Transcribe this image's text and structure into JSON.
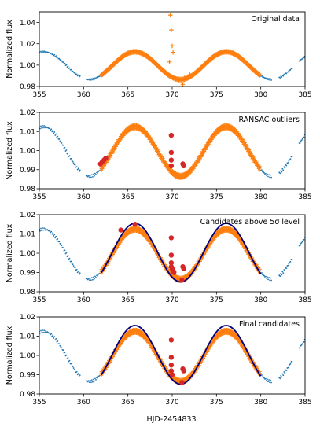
{
  "figure": {
    "xlabel": "HJD-2454833",
    "ylabel": "Normalized flux"
  },
  "colors": {
    "data_series": "#1f77b4",
    "selected_series": "#ff7f0e",
    "outlier_markers": "#d62728",
    "model_curve": "#000080"
  },
  "chart_data": [
    {
      "type": "scatter",
      "title": "Original data",
      "xlabel": "",
      "ylabel": "Normalized flux",
      "xlim": [
        355,
        385
      ],
      "ylim": [
        0.98,
        1.05
      ],
      "xticks": [
        355,
        360,
        365,
        370,
        375,
        380,
        385
      ],
      "yticks": [
        0.98,
        1.0,
        1.02,
        1.04
      ],
      "ytick_labels": [
        "0.98",
        "1.00",
        "1.02",
        "1.04"
      ],
      "grid": false,
      "series": [
        {
          "kind": "light_curve",
          "marker": "dot",
          "color": "#1f77b4",
          "x_range": [
            355,
            385
          ],
          "x": [
            355,
            357,
            359,
            360.5,
            362,
            364,
            366,
            368,
            370,
            371,
            373,
            375,
            376.5,
            378,
            380,
            381.5,
            383,
            384.9
          ],
          "y": [
            1.011,
            1.004,
            0.993,
            0.986,
            0.992,
            1.006,
            1.012,
            1.002,
            0.988,
            0.984,
            0.992,
            1.006,
            1.009,
            1.002,
            0.992,
            0.986,
            0.991,
            1.003
          ]
        },
        {
          "kind": "selected_window",
          "marker": "plus",
          "color": "#ff7f0e",
          "x_range": [
            362,
            380
          ]
        },
        {
          "kind": "outliers",
          "marker": "plus",
          "color": "#ff7f0e",
          "x": [
            369.8,
            369.9,
            370.0,
            370.1,
            369.7,
            371.2,
            371.4,
            372.0
          ],
          "y": [
            1.047,
            1.033,
            1.018,
            1.012,
            1.003,
            0.982,
            0.988,
            0.991
          ]
        }
      ]
    },
    {
      "type": "scatter",
      "title": "RANSAC outliers",
      "xlabel": "",
      "ylabel": "Normalized flux",
      "xlim": [
        355,
        385
      ],
      "ylim": [
        0.98,
        1.02
      ],
      "xticks": [
        355,
        360,
        365,
        370,
        375,
        380,
        385
      ],
      "yticks": [
        0.98,
        0.99,
        1.0,
        1.01,
        1.02
      ],
      "ytick_labels": [
        "0.98",
        "0.99",
        "1.00",
        "1.01",
        "1.02"
      ],
      "grid": false,
      "series": [
        {
          "kind": "light_curve",
          "marker": "dot",
          "color": "#1f77b4",
          "x_range": [
            355,
            385
          ]
        },
        {
          "kind": "selected_window",
          "marker": "plus",
          "color": "#ff7f0e",
          "x_range": [
            362,
            380
          ]
        },
        {
          "kind": "outlier_points",
          "marker": "circle",
          "color": "#d62728",
          "x": [
            361.9,
            362.1,
            362.3,
            362.5,
            369.9,
            369.9,
            369.9,
            369.9,
            371.2,
            371.3
          ],
          "y": [
            0.993,
            0.994,
            0.995,
            0.996,
            1.008,
            0.999,
            0.995,
            0.992,
            0.993,
            0.992
          ]
        }
      ]
    },
    {
      "type": "scatter",
      "title": "Candidates above 5σ level",
      "xlabel": "",
      "ylabel": "Normalized flux",
      "xlim": [
        355,
        385
      ],
      "ylim": [
        0.98,
        1.02
      ],
      "xticks": [
        355,
        360,
        365,
        370,
        375,
        380,
        385
      ],
      "yticks": [
        0.98,
        0.99,
        1.0,
        1.01,
        1.02
      ],
      "ytick_labels": [
        "0.98",
        "0.99",
        "1.00",
        "1.01",
        "1.02"
      ],
      "grid": false,
      "series": [
        {
          "kind": "light_curve",
          "marker": "dot",
          "color": "#1f77b4",
          "x_range": [
            355,
            385
          ]
        },
        {
          "kind": "selected_window",
          "marker": "plus",
          "color": "#ff7f0e",
          "x_range": [
            362,
            380
          ]
        },
        {
          "kind": "model",
          "marker": "line",
          "color": "#000080",
          "x_range": [
            362,
            380
          ]
        },
        {
          "kind": "candidates",
          "marker": "circle",
          "color": "#d62728",
          "x": [
            364.2,
            365.8,
            369.9,
            369.9,
            369.9,
            369.9,
            370.0,
            370.1,
            370.2,
            371.2,
            371.3,
            371.1
          ],
          "y": [
            1.012,
            1.015,
            1.008,
            0.999,
            0.995,
            0.993,
            0.992,
            0.991,
            0.99,
            0.993,
            0.992,
            0.986
          ]
        }
      ]
    },
    {
      "type": "scatter",
      "title": "Final candidates",
      "xlabel": "HJD-2454833",
      "ylabel": "Normalized flux",
      "xlim": [
        355,
        385
      ],
      "ylim": [
        0.98,
        1.02
      ],
      "xticks": [
        355,
        360,
        365,
        370,
        375,
        380,
        385
      ],
      "yticks": [
        0.98,
        0.99,
        1.0,
        1.01,
        1.02
      ],
      "ytick_labels": [
        "0.98",
        "0.99",
        "1.00",
        "1.01",
        "1.02"
      ],
      "grid": false,
      "series": [
        {
          "kind": "light_curve",
          "marker": "dot",
          "color": "#1f77b4",
          "x_range": [
            355,
            385
          ]
        },
        {
          "kind": "selected_window",
          "marker": "plus",
          "color": "#ff7f0e",
          "x_range": [
            362,
            380
          ]
        },
        {
          "kind": "model",
          "marker": "line",
          "color": "#000080",
          "x_range": [
            362,
            380
          ]
        },
        {
          "kind": "candidates",
          "marker": "circle",
          "color": "#d62728",
          "x": [
            369.9,
            369.9,
            369.9,
            369.9,
            370.0,
            371.2,
            371.3,
            371.1
          ],
          "y": [
            1.008,
            0.999,
            0.995,
            0.992,
            0.99,
            0.993,
            0.992,
            0.986
          ]
        }
      ]
    }
  ]
}
